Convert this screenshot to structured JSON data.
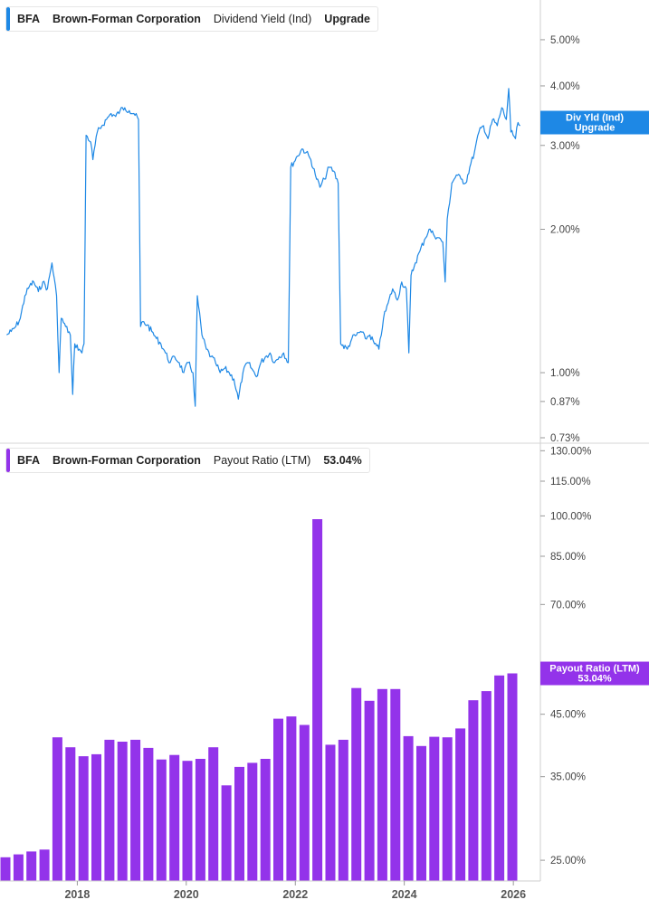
{
  "panels": {
    "top": {
      "ticker": "BFA",
      "company": "Brown-Forman Corporation",
      "metric": "Dividend Yield (Ind)",
      "current": "Upgrade",
      "color": "#1e88e5",
      "badge_lines": [
        "Div Yld (Ind)",
        "Upgrade"
      ]
    },
    "bottom": {
      "ticker": "BFA",
      "company": "Brown-Forman Corporation",
      "metric": "Payout Ratio (LTM)",
      "current": "53.04%",
      "color": "#9333ea",
      "badge_lines": [
        "Payout Ratio (LTM)",
        "53.04%"
      ]
    }
  },
  "chart_data": [
    {
      "type": "line",
      "scale": "log",
      "series": [
        {
          "points": [
            [
              "2016-09-15",
              1.2
            ],
            [
              "2016-10-15",
              1.22
            ],
            [
              "2016-11-15",
              1.25
            ],
            [
              "2016-12-15",
              1.3
            ],
            [
              "2017-01-15",
              1.45
            ],
            [
              "2017-02-15",
              1.52
            ],
            [
              "2017-03-15",
              1.55
            ],
            [
              "2017-04-15",
              1.48
            ],
            [
              "2017-05-15",
              1.55
            ],
            [
              "2017-06-15",
              1.5
            ],
            [
              "2017-07-15",
              1.7
            ],
            [
              "2017-08-15",
              1.45
            ],
            [
              "2017-09-01",
              1.0
            ],
            [
              "2017-09-15",
              1.3
            ],
            [
              "2017-10-15",
              1.25
            ],
            [
              "2017-11-15",
              1.2
            ],
            [
              "2017-12-01",
              0.9
            ],
            [
              "2017-12-15",
              1.15
            ],
            [
              "2018-01-15",
              1.12
            ],
            [
              "2018-02-01",
              1.1
            ],
            [
              "2018-02-15",
              1.15
            ],
            [
              "2018-03-01",
              3.15
            ],
            [
              "2018-04-01",
              3.05
            ],
            [
              "2018-04-15",
              2.8
            ],
            [
              "2018-05-15",
              3.2
            ],
            [
              "2018-06-15",
              3.3
            ],
            [
              "2018-07-15",
              3.4
            ],
            [
              "2018-08-15",
              3.5
            ],
            [
              "2018-09-15",
              3.45
            ],
            [
              "2018-10-15",
              3.55
            ],
            [
              "2018-11-15",
              3.6
            ],
            [
              "2018-12-15",
              3.55
            ],
            [
              "2019-01-15",
              3.5
            ],
            [
              "2019-02-15",
              3.4
            ],
            [
              "2019-03-01",
              1.25
            ],
            [
              "2019-03-15",
              1.28
            ],
            [
              "2019-04-15",
              1.26
            ],
            [
              "2019-05-15",
              1.22
            ],
            [
              "2019-06-15",
              1.18
            ],
            [
              "2019-07-15",
              1.15
            ],
            [
              "2019-08-15",
              1.1
            ],
            [
              "2019-09-15",
              1.05
            ],
            [
              "2019-10-15",
              1.08
            ],
            [
              "2019-11-15",
              1.05
            ],
            [
              "2019-12-15",
              1.0
            ],
            [
              "2020-01-15",
              1.05
            ],
            [
              "2020-02-15",
              1.0
            ],
            [
              "2020-03-01",
              0.85
            ],
            [
              "2020-03-15",
              1.45
            ],
            [
              "2020-04-15",
              1.2
            ],
            [
              "2020-05-15",
              1.12
            ],
            [
              "2020-06-15",
              1.08
            ],
            [
              "2020-07-15",
              1.05
            ],
            [
              "2020-08-15",
              1.0
            ],
            [
              "2020-09-15",
              1.02
            ],
            [
              "2020-10-15",
              1.0
            ],
            [
              "2020-11-15",
              0.97
            ],
            [
              "2020-12-15",
              0.88
            ],
            [
              "2021-01-15",
              1.0
            ],
            [
              "2021-02-15",
              1.05
            ],
            [
              "2021-03-15",
              1.02
            ],
            [
              "2021-04-15",
              0.98
            ],
            [
              "2021-05-15",
              1.05
            ],
            [
              "2021-06-15",
              1.08
            ],
            [
              "2021-07-15",
              1.1
            ],
            [
              "2021-08-15",
              1.05
            ],
            [
              "2021-09-15",
              1.08
            ],
            [
              "2021-10-15",
              1.1
            ],
            [
              "2021-11-15",
              1.05
            ],
            [
              "2021-12-01",
              2.7
            ],
            [
              "2022-01-15",
              2.85
            ],
            [
              "2022-02-15",
              2.95
            ],
            [
              "2022-03-15",
              2.9
            ],
            [
              "2022-04-15",
              2.8
            ],
            [
              "2022-05-15",
              2.6
            ],
            [
              "2022-06-15",
              2.45
            ],
            [
              "2022-07-15",
              2.55
            ],
            [
              "2022-08-15",
              2.7
            ],
            [
              "2022-09-15",
              2.65
            ],
            [
              "2022-10-15",
              2.5
            ],
            [
              "2022-11-01",
              1.15
            ],
            [
              "2022-12-15",
              1.12
            ],
            [
              "2023-01-15",
              1.18
            ],
            [
              "2023-02-15",
              1.2
            ],
            [
              "2023-03-15",
              1.22
            ],
            [
              "2023-04-15",
              1.18
            ],
            [
              "2023-05-15",
              1.2
            ],
            [
              "2023-06-15",
              1.15
            ],
            [
              "2023-07-15",
              1.12
            ],
            [
              "2023-08-15",
              1.3
            ],
            [
              "2023-09-15",
              1.4
            ],
            [
              "2023-10-15",
              1.5
            ],
            [
              "2023-11-15",
              1.42
            ],
            [
              "2023-12-15",
              1.55
            ],
            [
              "2024-01-15",
              1.5
            ],
            [
              "2024-02-01",
              1.1
            ],
            [
              "2024-02-15",
              1.6
            ],
            [
              "2024-03-15",
              1.7
            ],
            [
              "2024-04-15",
              1.8
            ],
            [
              "2024-05-15",
              1.9
            ],
            [
              "2024-06-15",
              2.0
            ],
            [
              "2024-07-15",
              1.95
            ],
            [
              "2024-08-15",
              1.92
            ],
            [
              "2024-09-15",
              1.88
            ],
            [
              "2024-10-01",
              1.55
            ],
            [
              "2024-10-15",
              2.1
            ],
            [
              "2024-11-15",
              2.5
            ],
            [
              "2024-12-15",
              2.6
            ],
            [
              "2025-01-15",
              2.55
            ],
            [
              "2025-02-15",
              2.5
            ],
            [
              "2025-03-15",
              2.7
            ],
            [
              "2025-04-15",
              2.9
            ],
            [
              "2025-05-15",
              3.2
            ],
            [
              "2025-06-15",
              3.3
            ],
            [
              "2025-07-15",
              3.1
            ],
            [
              "2025-08-15",
              3.4
            ],
            [
              "2025-09-15",
              3.3
            ],
            [
              "2025-10-15",
              3.6
            ],
            [
              "2025-11-15",
              3.4
            ],
            [
              "2025-12-01",
              3.95
            ],
            [
              "2025-12-15",
              3.2
            ],
            [
              "2026-01-15",
              3.1
            ],
            [
              "2026-02-01",
              3.35
            ],
            [
              "2026-02-15",
              3.3
            ]
          ]
        }
      ],
      "y_ticks": [
        "5.00%",
        "4.00%",
        "3.00%",
        "2.00%",
        "1.00%",
        "0.87%",
        "0.73%"
      ],
      "y_tick_values": [
        5.0,
        4.0,
        3.0,
        2.0,
        1.0,
        0.87,
        0.73
      ],
      "ylim": [
        0.73,
        5.6
      ],
      "current_value": 3.35
    },
    {
      "type": "bar",
      "scale": "log",
      "series": [
        {
          "points": [
            [
              "2016-06-30",
              25.3
            ],
            [
              "2016-09-30",
              25.6
            ],
            [
              "2016-12-31",
              25.9
            ],
            [
              "2017-03-31",
              26.1
            ],
            [
              "2017-06-30",
              41.0
            ],
            [
              "2017-09-30",
              39.4
            ],
            [
              "2017-12-31",
              38.0
            ],
            [
              "2018-03-31",
              38.3
            ],
            [
              "2018-06-30",
              40.6
            ],
            [
              "2018-09-30",
              40.3
            ],
            [
              "2018-12-31",
              40.6
            ],
            [
              "2019-03-31",
              39.3
            ],
            [
              "2019-06-30",
              37.5
            ],
            [
              "2019-09-30",
              38.2
            ],
            [
              "2019-12-31",
              37.3
            ],
            [
              "2020-03-31",
              37.6
            ],
            [
              "2020-06-30",
              39.4
            ],
            [
              "2020-09-30",
              33.8
            ],
            [
              "2020-12-31",
              36.4
            ],
            [
              "2021-03-31",
              37.0
            ],
            [
              "2021-06-30",
              37.6
            ],
            [
              "2021-09-30",
              44.2
            ],
            [
              "2021-12-31",
              44.6
            ],
            [
              "2022-03-31",
              43.1
            ],
            [
              "2022-06-30",
              98.7
            ],
            [
              "2022-09-30",
              39.8
            ],
            [
              "2022-12-31",
              40.6
            ],
            [
              "2023-03-31",
              50.0
            ],
            [
              "2023-06-30",
              47.5
            ],
            [
              "2023-09-30",
              49.8
            ],
            [
              "2023-12-31",
              49.8
            ],
            [
              "2024-03-31",
              41.2
            ],
            [
              "2024-06-30",
              39.6
            ],
            [
              "2024-09-30",
              41.1
            ],
            [
              "2024-12-31",
              41.0
            ],
            [
              "2025-03-31",
              42.5
            ],
            [
              "2025-06-30",
              47.6
            ],
            [
              "2025-09-30",
              49.4
            ],
            [
              "2025-12-31",
              52.6
            ],
            [
              "2026-02-28",
              53.04
            ]
          ]
        }
      ],
      "y_ticks": [
        "130.00%",
        "115.00%",
        "100.00%",
        "85.00%",
        "70.00%",
        "45.00%",
        "35.00%",
        "25.00%"
      ],
      "y_tick_values": [
        130,
        115,
        100,
        85,
        70,
        45,
        35,
        25
      ],
      "ylim": [
        23.0,
        134.0
      ],
      "current_value": 53.04
    }
  ],
  "x_axis": {
    "labels": [
      "2018",
      "2020",
      "2022",
      "2024",
      "2026"
    ],
    "range": [
      "2016-08-01",
      "2026-07-01"
    ]
  }
}
